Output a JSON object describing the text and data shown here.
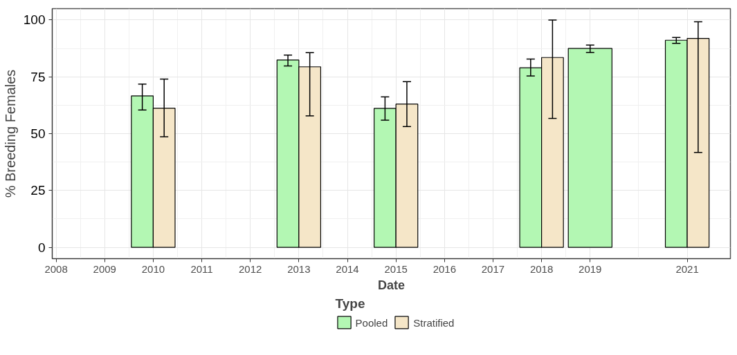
{
  "chart_data": {
    "type": "bar",
    "xlabel": "Date",
    "ylabel": "% Breeding Females",
    "legend_title": "Type",
    "x": [
      2010,
      2013,
      2015,
      2018,
      2019,
      2021
    ],
    "series": [
      {
        "name": "Pooled",
        "color": "#b3f7b3",
        "values": [
          66.6,
          82.4,
          61.1,
          79.0,
          87.5,
          91.1
        ],
        "errors": [
          [
            60.4,
            71.8
          ],
          [
            79.8,
            84.6
          ],
          [
            55.9,
            66.2
          ],
          [
            75.4,
            82.8
          ],
          [
            85.7,
            89.0
          ],
          [
            89.7,
            92.3
          ]
        ]
      },
      {
        "name": "Stratified",
        "color": "#f5e6c8",
        "values": [
          61.2,
          79.4,
          63.0,
          83.5,
          null,
          91.9
        ],
        "errors": [
          [
            48.6,
            74.0
          ],
          [
            57.8,
            85.6
          ],
          [
            53.1,
            72.9
          ],
          [
            56.7,
            100.0
          ],
          null,
          [
            41.7,
            99.2
          ]
        ]
      }
    ],
    "xlim": [
      2007.92,
      2021.89
    ],
    "xticks": [
      2008,
      2009,
      2010,
      2011,
      2012,
      2013,
      2014,
      2015,
      2016,
      2017,
      2018,
      2019,
      2021
    ],
    "ylim": [
      -5,
      105
    ],
    "yticks": [
      0,
      25,
      50,
      75,
      100
    ],
    "grid": true,
    "legend": "bottom"
  }
}
